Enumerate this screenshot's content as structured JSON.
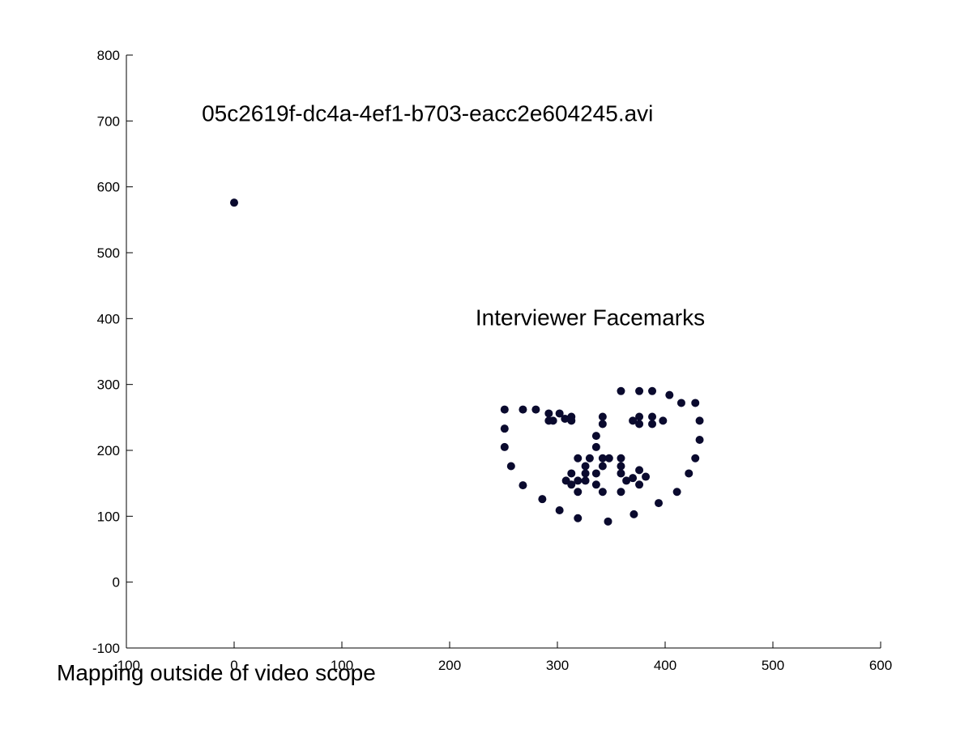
{
  "chart_data": {
    "type": "scatter",
    "title": "",
    "xlabel": "",
    "ylabel": "",
    "xlim": [
      -100,
      600
    ],
    "ylim": [
      -100,
      800
    ],
    "x_ticks": [
      "-100",
      "0",
      "100",
      "200",
      "300",
      "400",
      "500",
      "600"
    ],
    "y_ticks": [
      "-100",
      "0",
      "100",
      "200",
      "300",
      "400",
      "500",
      "600",
      "700",
      "800"
    ],
    "grid": false,
    "marker_color": "#0a0a2e",
    "annotations": {
      "filename": {
        "text": "05c2619f-dc4a-4ef1-b703-eacc2e604245.avi",
        "x": -30,
        "y": 700
      },
      "face_label": {
        "text": "Interviewer Facemarks",
        "x": 224,
        "y": 390
      },
      "outside_note": {
        "text": "Mapping outside of video scope"
      }
    },
    "series": [
      {
        "points": [
          [
            0,
            576
          ],
          [
            251,
            262
          ],
          [
            251,
            233
          ],
          [
            251,
            205
          ],
          [
            257,
            176
          ],
          [
            268,
            147
          ],
          [
            286,
            126
          ],
          [
            302,
            109
          ],
          [
            319,
            97
          ],
          [
            347,
            92
          ],
          [
            371,
            103
          ],
          [
            394,
            120
          ],
          [
            411,
            137
          ],
          [
            422,
            165
          ],
          [
            428,
            188
          ],
          [
            432,
            216
          ],
          [
            432,
            245
          ],
          [
            428,
            272
          ],
          [
            415,
            272
          ],
          [
            404,
            284
          ],
          [
            268,
            262
          ],
          [
            280,
            262
          ],
          [
            292,
            256
          ],
          [
            302,
            256
          ],
          [
            313,
            251
          ],
          [
            359,
            290
          ],
          [
            376,
            290
          ],
          [
            388,
            290
          ],
          [
            292,
            245
          ],
          [
            296,
            245
          ],
          [
            307,
            248
          ],
          [
            313,
            245
          ],
          [
            342,
            251
          ],
          [
            342,
            240
          ],
          [
            370,
            245
          ],
          [
            376,
            240
          ],
          [
            376,
            251
          ],
          [
            388,
            240
          ],
          [
            388,
            251
          ],
          [
            398,
            245
          ],
          [
            336,
            222
          ],
          [
            336,
            205
          ],
          [
            342,
            188
          ],
          [
            348,
            188
          ],
          [
            359,
            188
          ],
          [
            359,
            176
          ],
          [
            342,
            176
          ],
          [
            319,
            188
          ],
          [
            330,
            188
          ],
          [
            326,
            176
          ],
          [
            313,
            165
          ],
          [
            326,
            165
          ],
          [
            336,
            165
          ],
          [
            359,
            165
          ],
          [
            376,
            170
          ],
          [
            382,
            160
          ],
          [
            370,
            158
          ],
          [
            364,
            154
          ],
          [
            308,
            154
          ],
          [
            313,
            148
          ],
          [
            319,
            154
          ],
          [
            326,
            154
          ],
          [
            336,
            148
          ],
          [
            376,
            148
          ],
          [
            319,
            137
          ],
          [
            342,
            137
          ],
          [
            359,
            137
          ]
        ]
      }
    ]
  }
}
